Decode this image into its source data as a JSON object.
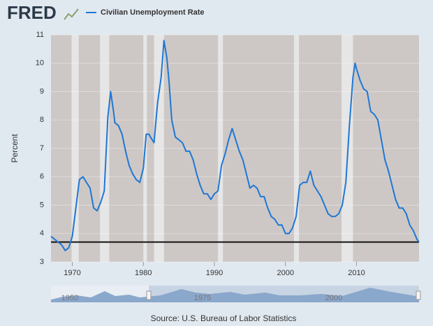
{
  "chart_data": {
    "type": "line",
    "logo": "FRED",
    "y_label": "Percent",
    "source": "Source: U.S. Bureau of Labor Statistics",
    "xlim": [
      1967,
      2018.8
    ],
    "xticks": [
      1970,
      1980,
      1990,
      2000,
      2010
    ],
    "ylim": [
      3,
      11
    ],
    "yticks": [
      3,
      4,
      5,
      6,
      7,
      8,
      9,
      10,
      11
    ],
    "grid": true,
    "reference_line": 3.7,
    "recessions": [
      [
        1969.9,
        1970.9
      ],
      [
        1973.9,
        1975.2
      ],
      [
        1980.0,
        1980.5
      ],
      [
        1981.5,
        1982.9
      ],
      [
        1990.5,
        1991.2
      ],
      [
        2001.2,
        2001.9
      ],
      [
        2007.9,
        2009.5
      ]
    ],
    "navigator_labels": [
      "1950",
      "1975",
      "2000"
    ],
    "x": [
      1967.0,
      1967.5,
      1968.0,
      1968.5,
      1969.0,
      1969.5,
      1970.0,
      1970.5,
      1971.0,
      1971.5,
      1972.0,
      1972.5,
      1973.0,
      1973.5,
      1974.0,
      1974.5,
      1975.0,
      1975.4,
      1975.8,
      1976.0,
      1976.5,
      1977.0,
      1977.5,
      1978.0,
      1978.5,
      1979.0,
      1979.5,
      1980.0,
      1980.4,
      1980.8,
      1981.0,
      1981.5,
      1982.0,
      1982.5,
      1982.9,
      1983.3,
      1983.6,
      1984.0,
      1984.5,
      1985.0,
      1985.5,
      1986.0,
      1986.5,
      1987.0,
      1987.5,
      1988.0,
      1988.5,
      1989.0,
      1989.5,
      1990.0,
      1990.5,
      1991.0,
      1991.5,
      1992.0,
      1992.5,
      1993.0,
      1993.5,
      1994.0,
      1994.5,
      1995.0,
      1995.5,
      1996.0,
      1996.5,
      1997.0,
      1997.5,
      1998.0,
      1998.5,
      1999.0,
      1999.5,
      2000.0,
      2000.5,
      2001.0,
      2001.5,
      2002.0,
      2002.5,
      2003.0,
      2003.5,
      2004.0,
      2004.5,
      2005.0,
      2005.5,
      2006.0,
      2006.5,
      2007.0,
      2007.5,
      2008.0,
      2008.5,
      2009.0,
      2009.5,
      2009.8,
      2010.0,
      2010.5,
      2011.0,
      2011.5,
      2012.0,
      2012.5,
      2013.0,
      2013.5,
      2014.0,
      2014.5,
      2015.0,
      2015.5,
      2016.0,
      2016.5,
      2017.0,
      2017.5,
      2018.0,
      2018.5,
      2018.8
    ],
    "series": [
      {
        "name": "Civilian Unemployment Rate",
        "color": "#1f77d4",
        "values": [
          3.9,
          3.8,
          3.7,
          3.6,
          3.4,
          3.5,
          3.9,
          4.9,
          5.9,
          6.0,
          5.8,
          5.6,
          4.9,
          4.8,
          5.1,
          5.5,
          8.1,
          9.0,
          8.3,
          7.9,
          7.8,
          7.5,
          6.9,
          6.4,
          6.1,
          5.9,
          5.8,
          6.3,
          7.5,
          7.5,
          7.4,
          7.2,
          8.6,
          9.5,
          10.8,
          10.2,
          9.4,
          8.0,
          7.4,
          7.3,
          7.2,
          6.9,
          6.9,
          6.6,
          6.1,
          5.7,
          5.4,
          5.4,
          5.2,
          5.4,
          5.5,
          6.4,
          6.8,
          7.3,
          7.7,
          7.3,
          6.9,
          6.6,
          6.1,
          5.6,
          5.7,
          5.6,
          5.3,
          5.3,
          4.9,
          4.6,
          4.5,
          4.3,
          4.3,
          4.0,
          4.0,
          4.2,
          4.6,
          5.7,
          5.8,
          5.8,
          6.2,
          5.7,
          5.5,
          5.3,
          5.0,
          4.7,
          4.6,
          4.6,
          4.7,
          5.0,
          5.8,
          7.8,
          9.5,
          10.0,
          9.8,
          9.4,
          9.1,
          9.0,
          8.3,
          8.2,
          8.0,
          7.3,
          6.6,
          6.2,
          5.7,
          5.2,
          4.9,
          4.9,
          4.7,
          4.3,
          4.1,
          3.8,
          3.7
        ]
      }
    ]
  }
}
